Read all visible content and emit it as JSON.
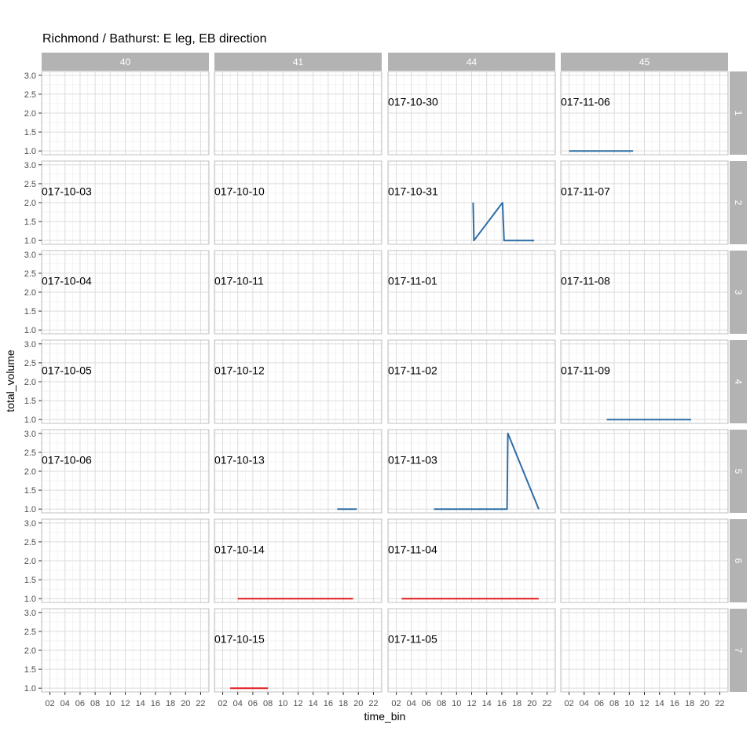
{
  "chart_data": {
    "type": "line",
    "title": "Richmond / Bathurst: E leg, EB direction",
    "xlabel": "time_bin",
    "ylabel": "total_volume",
    "ylim": [
      0.9,
      3.1
    ],
    "xlim": [
      0.9,
      23.1
    ],
    "y_ticks": [
      1.0,
      1.5,
      2.0,
      2.5,
      3.0
    ],
    "y_tick_labels": [
      "1.0",
      "1.5",
      "2.0",
      "2.5",
      "3.0"
    ],
    "x_ticks": [
      2,
      4,
      6,
      8,
      10,
      12,
      14,
      16,
      18,
      20,
      22
    ],
    "x_tick_labels": [
      "02",
      "04",
      "06",
      "08",
      "10",
      "12",
      "14",
      "16",
      "18",
      "20",
      "22"
    ],
    "column_facets": [
      "40",
      "41",
      "44",
      "45"
    ],
    "row_facets": [
      "1",
      "2",
      "3",
      "4",
      "5",
      "6",
      "7"
    ],
    "grid": true,
    "colors": {
      "blue_series": "#2e6da4",
      "red_series": "#e31a1c",
      "strip_fill": "#b3b3b3",
      "grid": "#dcdcdc",
      "panel_border": "#c0c0c0"
    },
    "panels": [
      {
        "row": "1",
        "col": "44",
        "date_label": "017-10-30",
        "series": []
      },
      {
        "row": "1",
        "col": "45",
        "date_label": "017-11-06",
        "series": [
          {
            "color": "blue",
            "points": [
              [
                2,
                1
              ],
              [
                10.5,
                1
              ]
            ]
          }
        ]
      },
      {
        "row": "2",
        "col": "40",
        "date_label": "017-10-03",
        "series": []
      },
      {
        "row": "2",
        "col": "41",
        "date_label": "017-10-10",
        "series": []
      },
      {
        "row": "2",
        "col": "44",
        "date_label": "017-10-31",
        "series": [
          {
            "color": "blue",
            "points": [
              [
                12.2,
                2
              ],
              [
                12.3,
                1
              ],
              [
                16.1,
                2
              ],
              [
                16.3,
                1
              ],
              [
                20.3,
                1
              ]
            ]
          }
        ]
      },
      {
        "row": "2",
        "col": "45",
        "date_label": "017-11-07",
        "series": []
      },
      {
        "row": "3",
        "col": "40",
        "date_label": "017-10-04",
        "series": []
      },
      {
        "row": "3",
        "col": "41",
        "date_label": "017-10-11",
        "series": []
      },
      {
        "row": "3",
        "col": "44",
        "date_label": "017-11-01",
        "series": []
      },
      {
        "row": "3",
        "col": "45",
        "date_label": "017-11-08",
        "series": []
      },
      {
        "row": "4",
        "col": "40",
        "date_label": "017-10-05",
        "series": []
      },
      {
        "row": "4",
        "col": "41",
        "date_label": "017-10-12",
        "series": []
      },
      {
        "row": "4",
        "col": "44",
        "date_label": "017-11-02",
        "series": []
      },
      {
        "row": "4",
        "col": "45",
        "date_label": "017-11-09",
        "series": [
          {
            "color": "blue",
            "points": [
              [
                7,
                1
              ],
              [
                18.2,
                1
              ]
            ]
          }
        ]
      },
      {
        "row": "5",
        "col": "40",
        "date_label": "017-10-06",
        "series": []
      },
      {
        "row": "5",
        "col": "41",
        "date_label": "017-10-13",
        "series": [
          {
            "color": "blue",
            "points": [
              [
                17.2,
                1
              ],
              [
                19.8,
                1
              ]
            ]
          }
        ]
      },
      {
        "row": "5",
        "col": "44",
        "date_label": "017-11-03",
        "series": [
          {
            "color": "blue",
            "points": [
              [
                7,
                1
              ],
              [
                16.7,
                1
              ],
              [
                16.8,
                3
              ],
              [
                20.9,
                1
              ]
            ]
          }
        ]
      },
      {
        "row": "5",
        "col": "45",
        "date_label": "",
        "series": []
      },
      {
        "row": "6",
        "col": "41",
        "date_label": "017-10-14",
        "series": [
          {
            "color": "red",
            "points": [
              [
                4,
                1
              ],
              [
                19.3,
                1
              ]
            ]
          }
        ]
      },
      {
        "row": "6",
        "col": "44",
        "date_label": "017-11-04",
        "series": [
          {
            "color": "red",
            "points": [
              [
                2.7,
                1
              ],
              [
                20.9,
                1
              ]
            ]
          }
        ]
      },
      {
        "row": "7",
        "col": "41",
        "date_label": "017-10-15",
        "series": [
          {
            "color": "red",
            "points": [
              [
                3,
                1
              ],
              [
                8,
                1
              ]
            ]
          }
        ]
      },
      {
        "row": "7",
        "col": "44",
        "date_label": "017-11-05",
        "series": []
      }
    ]
  }
}
